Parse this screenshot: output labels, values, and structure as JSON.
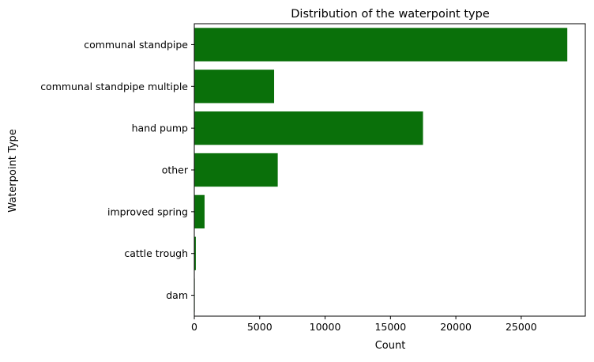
{
  "chart_data": {
    "type": "bar",
    "orientation": "horizontal",
    "title": "Distribution of the waterpoint type",
    "xlabel": "Count",
    "ylabel": "Waterpoint Type",
    "categories": [
      "communal standpipe",
      "communal standpipe multiple",
      "hand pump",
      "other",
      "improved spring",
      "cattle trough",
      "dam"
    ],
    "values": [
      28522,
      6103,
      17488,
      6380,
      784,
      116,
      7
    ],
    "xlim": [
      0,
      29900
    ],
    "xticks": [
      0,
      5000,
      10000,
      15000,
      20000,
      25000
    ],
    "grid": false,
    "legend": "none",
    "bar_color": "#0a700a"
  }
}
